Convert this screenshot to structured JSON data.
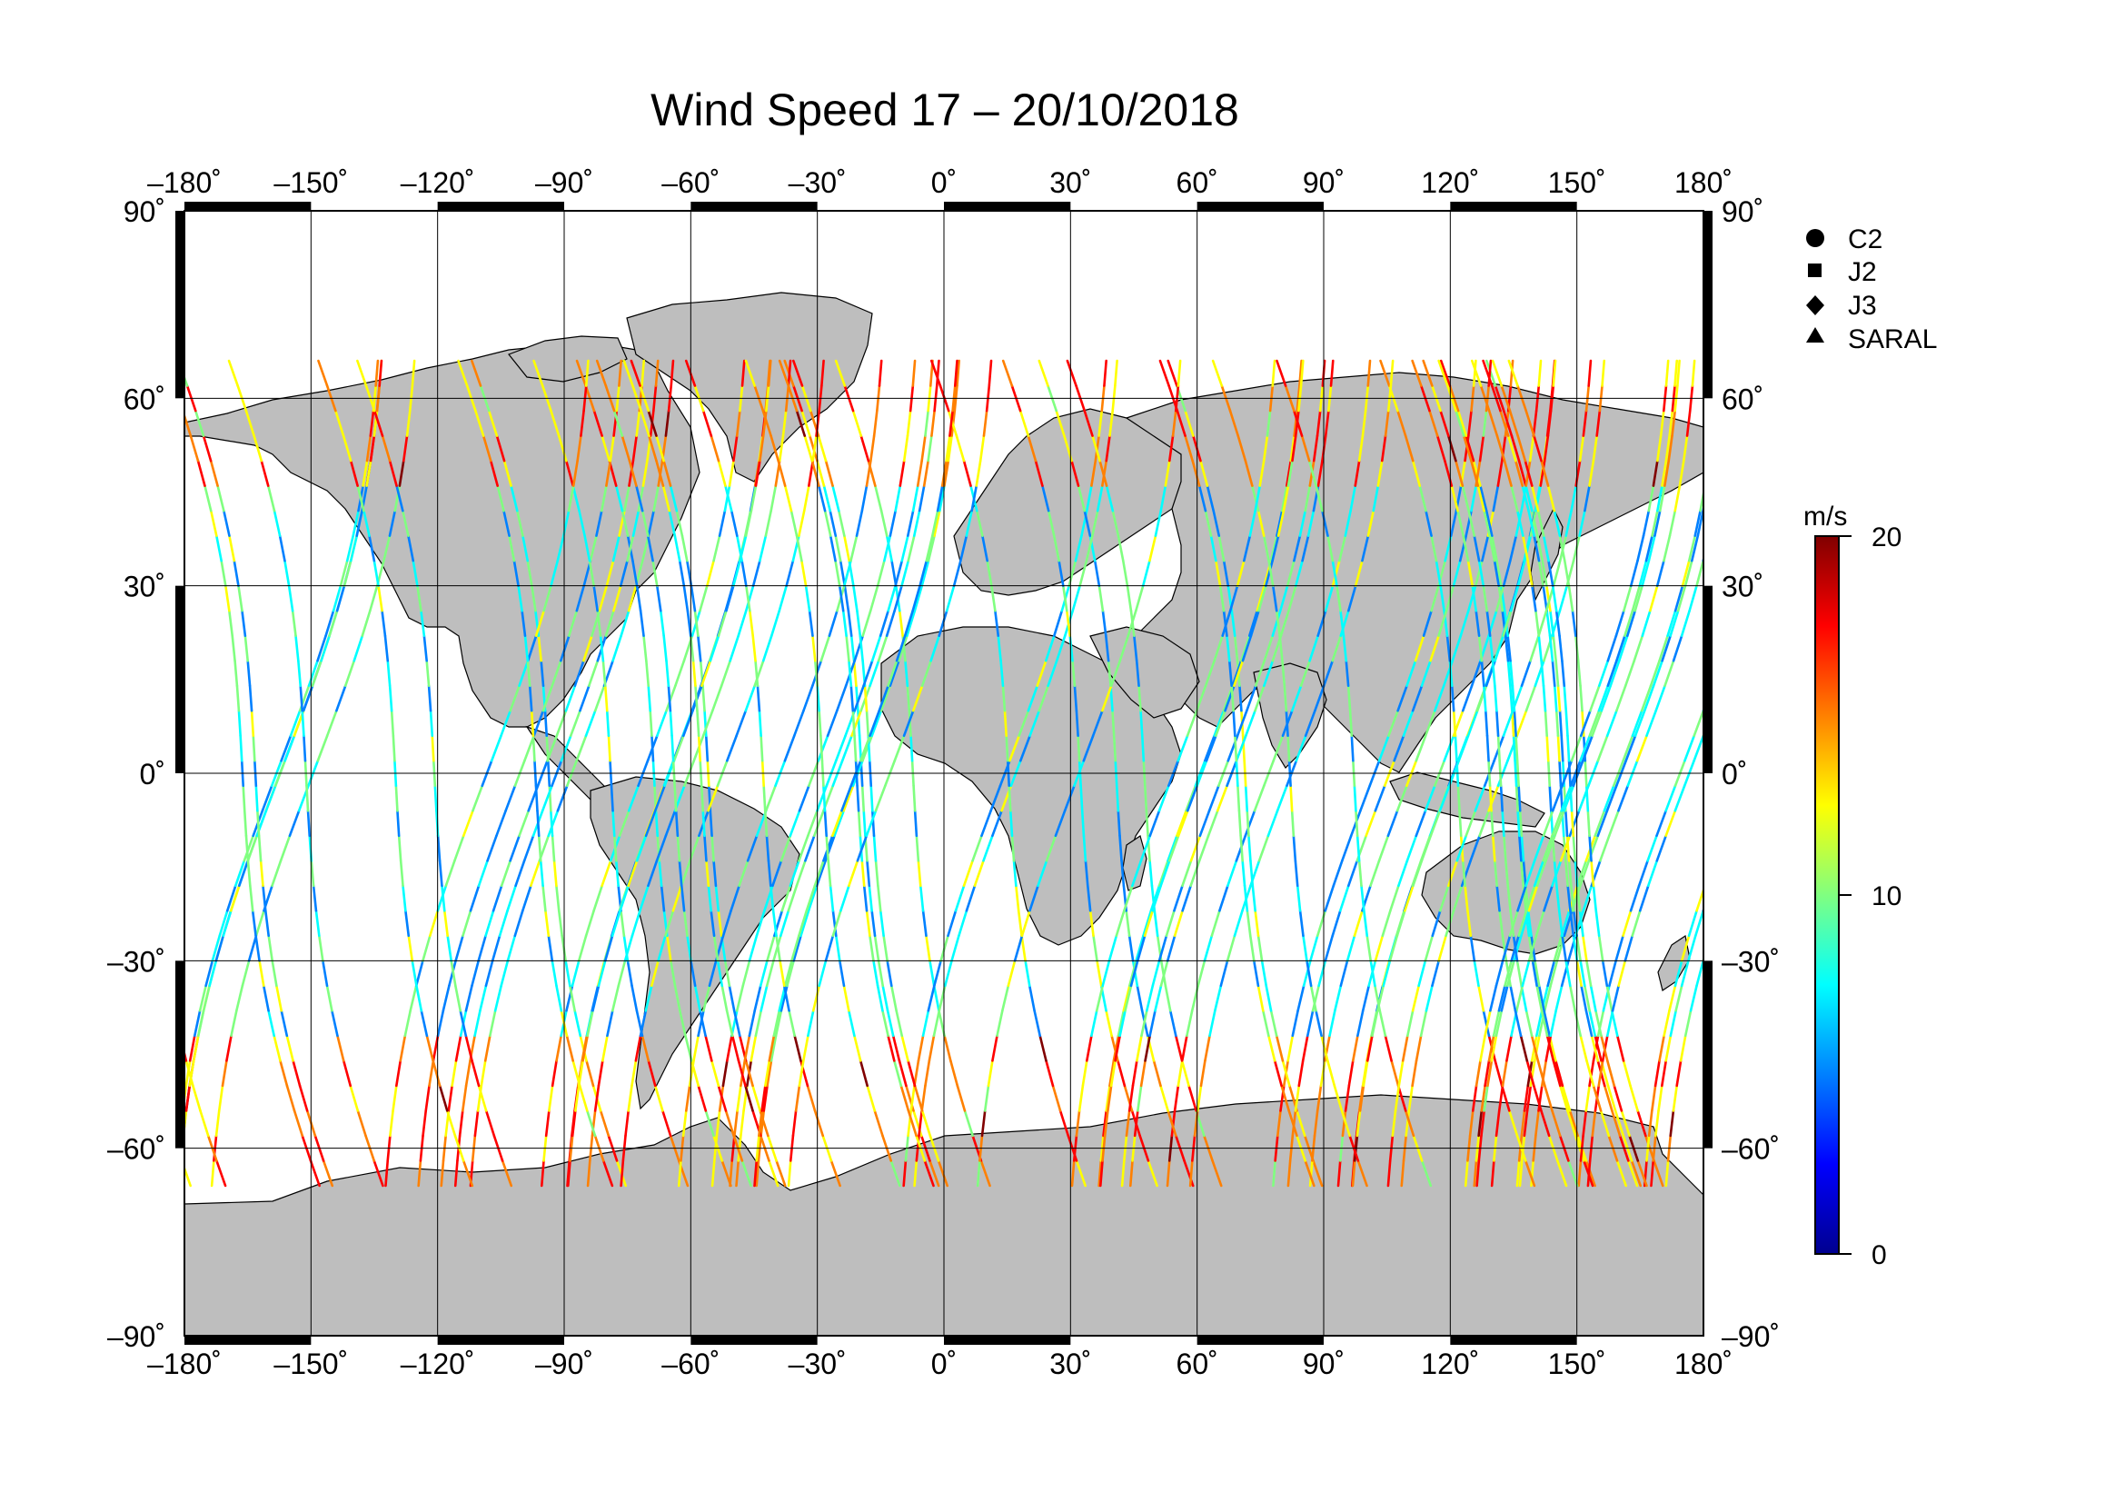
{
  "title": "Wind Speed 17 – 20/10/2018",
  "x_ticks": [
    "–180˚",
    "–150˚",
    "–120˚",
    "–90˚",
    "–60˚",
    "–30˚",
    "0˚",
    "30˚",
    "60˚",
    "90˚",
    "120˚",
    "150˚",
    "180˚"
  ],
  "y_ticks": [
    "90˚",
    "60˚",
    "30˚",
    "0˚",
    "–30˚",
    "–60˚",
    "–90˚"
  ],
  "legend": {
    "items": [
      {
        "symbol": "circle",
        "label": "C2"
      },
      {
        "symbol": "square",
        "label": "J2"
      },
      {
        "symbol": "diamond",
        "label": "J3"
      },
      {
        "symbol": "triangle",
        "label": "SARAL"
      }
    ]
  },
  "colorbar": {
    "unit": "m/s",
    "min": 0,
    "max": 20,
    "ticks": [
      {
        "value": 20,
        "label": "20"
      },
      {
        "value": 10,
        "label": "10"
      },
      {
        "value": 0,
        "label": "0"
      }
    ],
    "colors": [
      "#00008f",
      "#0000ff",
      "#0080ff",
      "#00ffff",
      "#80ff80",
      "#ffff00",
      "#ff8000",
      "#ff0000",
      "#800000"
    ]
  },
  "map": {
    "lon_range": [
      -180,
      180
    ],
    "lat_range": [
      -90,
      90
    ],
    "land_color": "#bebebe",
    "ocean_color": "#ffffff"
  }
}
